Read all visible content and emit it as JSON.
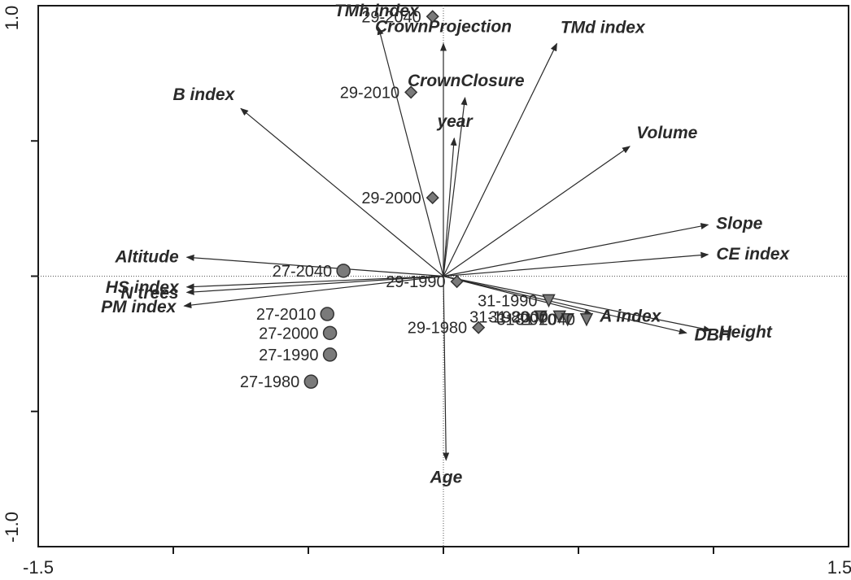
{
  "chart_data": {
    "type": "scatter",
    "subtype": "biplot",
    "title": "",
    "xlabel": "",
    "ylabel": "",
    "xlim": [
      -1.5,
      1.5
    ],
    "ylim": [
      -1.0,
      1.0
    ],
    "x_tick_labels": [
      "-1.5",
      "1.5"
    ],
    "y_tick_labels": [
      "1.0",
      "-1.0"
    ],
    "marker_color": "#7a7a7a",
    "vectors": [
      {
        "name": "B index",
        "x": -0.75,
        "y": 0.62
      },
      {
        "name": "TMh index",
        "x": -0.24,
        "y": 0.92
      },
      {
        "name": "CrownProjection",
        "x": 0.0,
        "y": 0.86
      },
      {
        "name": "CrownClosure",
        "x": 0.08,
        "y": 0.66
      },
      {
        "name": "year",
        "x": 0.04,
        "y": 0.51
      },
      {
        "name": "TMd index",
        "x": 0.42,
        "y": 0.86
      },
      {
        "name": "Volume",
        "x": 0.69,
        "y": 0.48
      },
      {
        "name": "Slope",
        "x": 0.98,
        "y": 0.19
      },
      {
        "name": "CE index",
        "x": 0.98,
        "y": 0.08
      },
      {
        "name": "Altitude",
        "x": -0.95,
        "y": 0.07
      },
      {
        "name": "HS index",
        "x": -0.95,
        "y": -0.04
      },
      {
        "name": "N trees",
        "x": -0.95,
        "y": -0.06
      },
      {
        "name": "PM index",
        "x": -0.96,
        "y": -0.11
      },
      {
        "name": "A index",
        "x": 0.55,
        "y": -0.14
      },
      {
        "name": "Height",
        "x": 0.99,
        "y": -0.2
      },
      {
        "name": "DBH",
        "x": 0.9,
        "y": -0.21
      },
      {
        "name": "Age",
        "x": 0.01,
        "y": -0.68
      }
    ],
    "series": [
      {
        "marker": "circle",
        "points": [
          {
            "label": "27-2040",
            "x": -0.37,
            "y": 0.02
          },
          {
            "label": "27-2010",
            "x": -0.43,
            "y": -0.14
          },
          {
            "label": "27-2000",
            "x": -0.42,
            "y": -0.21
          },
          {
            "label": "27-1990",
            "x": -0.42,
            "y": -0.29
          },
          {
            "label": "27-1980",
            "x": -0.49,
            "y": -0.39
          }
        ]
      },
      {
        "marker": "diamond",
        "points": [
          {
            "label": "29-2040",
            "x": -0.04,
            "y": 0.96
          },
          {
            "label": "29-2010",
            "x": -0.12,
            "y": 0.68
          },
          {
            "label": "29-2000",
            "x": -0.04,
            "y": 0.29
          },
          {
            "label": "29-1990",
            "x": 0.05,
            "y": -0.02
          },
          {
            "label": "29-1980",
            "x": 0.13,
            "y": -0.19
          }
        ]
      },
      {
        "marker": "triangle",
        "points": [
          {
            "label": "31-1990",
            "x": 0.39,
            "y": -0.09
          },
          {
            "label": "31-1980",
            "x": 0.36,
            "y": -0.15
          },
          {
            "label": "31-2000",
            "x": 0.43,
            "y": -0.15
          },
          {
            "label": "31-2010",
            "x": 0.46,
            "y": -0.16
          },
          {
            "label": "31-2040",
            "x": 0.53,
            "y": -0.16
          }
        ]
      }
    ]
  }
}
